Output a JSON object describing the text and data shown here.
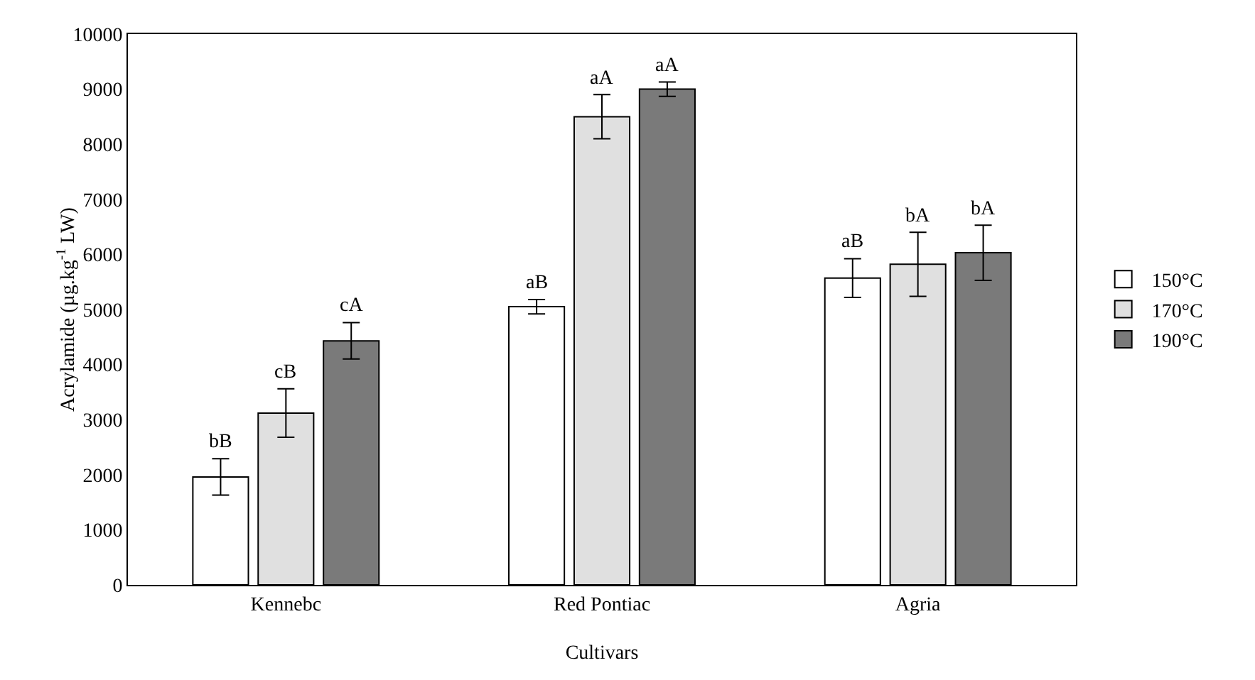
{
  "chart_data": {
    "type": "bar",
    "xlabel": "Cultivars",
    "ylabel": "Acrylamide (µg.kg$^{-1}$ LW)",
    "categories": [
      "Kennebc",
      "Red Pontiac",
      "Agria"
    ],
    "series": [
      {
        "name": "150°C",
        "color": "#ffffff",
        "values": [
          1960,
          5050,
          5570
        ],
        "errors": [
          330,
          130,
          350
        ],
        "value_labels": [
          "bB",
          "aB",
          "aB"
        ]
      },
      {
        "name": "170°C",
        "color": "#e0e0e0",
        "values": [
          3120,
          8500,
          5820
        ],
        "errors": [
          440,
          400,
          580
        ],
        "value_labels": [
          "cB",
          "aA",
          "bA"
        ]
      },
      {
        "name": "190°C",
        "color": "#7a7a7a",
        "values": [
          4430,
          9000,
          6030
        ],
        "errors": [
          330,
          130,
          500
        ],
        "value_labels": [
          "cA",
          "aA",
          "bA"
        ]
      }
    ],
    "ylim": [
      0,
      10000
    ],
    "yticks": [
      0,
      1000,
      2000,
      3000,
      4000,
      5000,
      6000,
      7000,
      8000,
      9000,
      10000
    ],
    "grid": false,
    "legend": "right"
  }
}
